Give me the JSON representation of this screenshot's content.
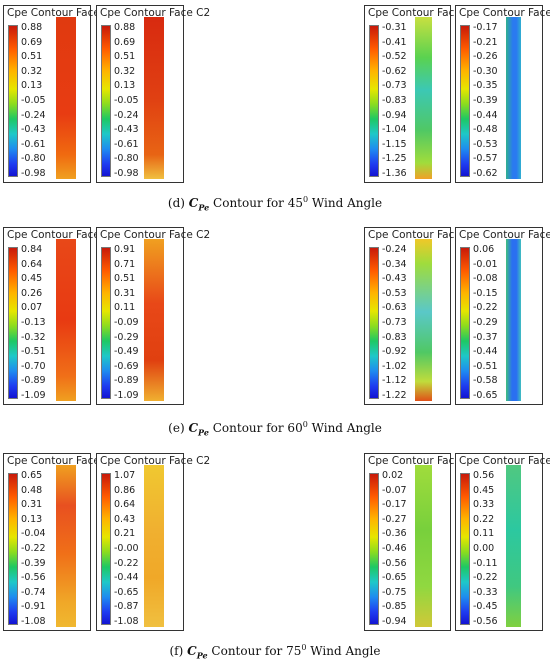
{
  "rows": [
    {
      "caption": {
        "letter": "(d)",
        "symbol": "C",
        "sub": "Pe",
        "mid": "Contour for 45",
        "sup": "0",
        "end": " Wind Angle"
      },
      "panels": [
        {
          "title": "Cpe Contour Face A1",
          "ticks": [
            "0.88",
            "0.69",
            "0.51",
            "0.32",
            "0.13",
            "-0.05",
            "-0.24",
            "-0.43",
            "-0.61",
            "-0.80",
            "-0.98"
          ]
        },
        {
          "title": "Cpe Contour Face C2",
          "ticks": [
            "0.88",
            "0.69",
            "0.51",
            "0.32",
            "0.13",
            "-0.05",
            "-0.24",
            "-0.43",
            "-0.61",
            "-0.80",
            "-0.98"
          ]
        },
        {
          "title": "Cpe Contour Face B2",
          "ticks": [
            "-0.31",
            "-0.41",
            "-0.52",
            "-0.62",
            "-0.73",
            "-0.83",
            "-0.94",
            "-1.04",
            "-1.15",
            "-1.25",
            "-1.36"
          ]
        },
        {
          "title": "Cpe Contour Face C1",
          "ticks": [
            "-0.17",
            "-0.21",
            "-0.26",
            "-0.30",
            "-0.35",
            "-0.39",
            "-0.44",
            "-0.48",
            "-0.53",
            "-0.57",
            "-0.62"
          ]
        }
      ]
    },
    {
      "caption": {
        "letter": "(e)",
        "symbol": "C",
        "sub": "Pe",
        "mid": "Contour for 60",
        "sup": "0",
        "end": " Wind Angle"
      },
      "panels": [
        {
          "title": "Cpe Contour Face A1",
          "ticks": [
            "0.84",
            "0.64",
            "0.45",
            "0.26",
            "0.07",
            "-0.13",
            "-0.32",
            "-0.51",
            "-0.70",
            "-0.89",
            "-1.09"
          ]
        },
        {
          "title": "Cpe Contour Face C2",
          "ticks": [
            "0.91",
            "0.71",
            "0.51",
            "0.31",
            "0.11",
            "-0.09",
            "-0.29",
            "-0.49",
            "-0.69",
            "-0.89",
            "-1.09"
          ]
        },
        {
          "title": "Cpe Contour Face B2",
          "ticks": [
            "-0.24",
            "-0.34",
            "-0.43",
            "-0.53",
            "-0.63",
            "-0.73",
            "-0.83",
            "-0.92",
            "-1.02",
            "-1.12",
            "-1.22"
          ]
        },
        {
          "title": "Cpe Contour Face C1",
          "ticks": [
            "0.06",
            "-0.01",
            "-0.08",
            "-0.15",
            "-0.22",
            "-0.29",
            "-0.37",
            "-0.44",
            "-0.51",
            "-0.58",
            "-0.65"
          ]
        }
      ]
    },
    {
      "caption": {
        "letter": "(f)",
        "symbol": "C",
        "sub": "Pe",
        "mid": "Contour for 75",
        "sup": "0",
        "end": " Wind Angle"
      },
      "panels": [
        {
          "title": "Cpe Contour Face A1",
          "ticks": [
            "0.65",
            "0.48",
            "0.31",
            "0.13",
            "-0.04",
            "-0.22",
            "-0.39",
            "-0.56",
            "-0.74",
            "-0.91",
            "-1.08"
          ]
        },
        {
          "title": "Cpe Contour Face C2",
          "ticks": [
            "1.07",
            "0.86",
            "0.64",
            "0.43",
            "0.21",
            "-0.00",
            "-0.22",
            "-0.44",
            "-0.65",
            "-0.87",
            "-1.08"
          ]
        },
        {
          "title": "Cpe Contour Face B2",
          "ticks": [
            "0.02",
            "-0.07",
            "-0.17",
            "-0.27",
            "-0.36",
            "-0.46",
            "-0.56",
            "-0.65",
            "-0.75",
            "-0.85",
            "-0.94"
          ]
        },
        {
          "title": "Cpe Contour Face C1",
          "ticks": [
            "0.56",
            "0.45",
            "0.33",
            "0.22",
            "0.11",
            "0.00",
            "-0.11",
            "-0.22",
            "-0.33",
            "-0.45",
            "-0.56"
          ]
        }
      ]
    }
  ],
  "colors": {
    "high": "#c81a0a",
    "orange": "#ff5a00",
    "yellow": "#e6e600",
    "green": "#1ec864",
    "cyan": "#1ec8c8",
    "blue": "#1e3cf0"
  }
}
